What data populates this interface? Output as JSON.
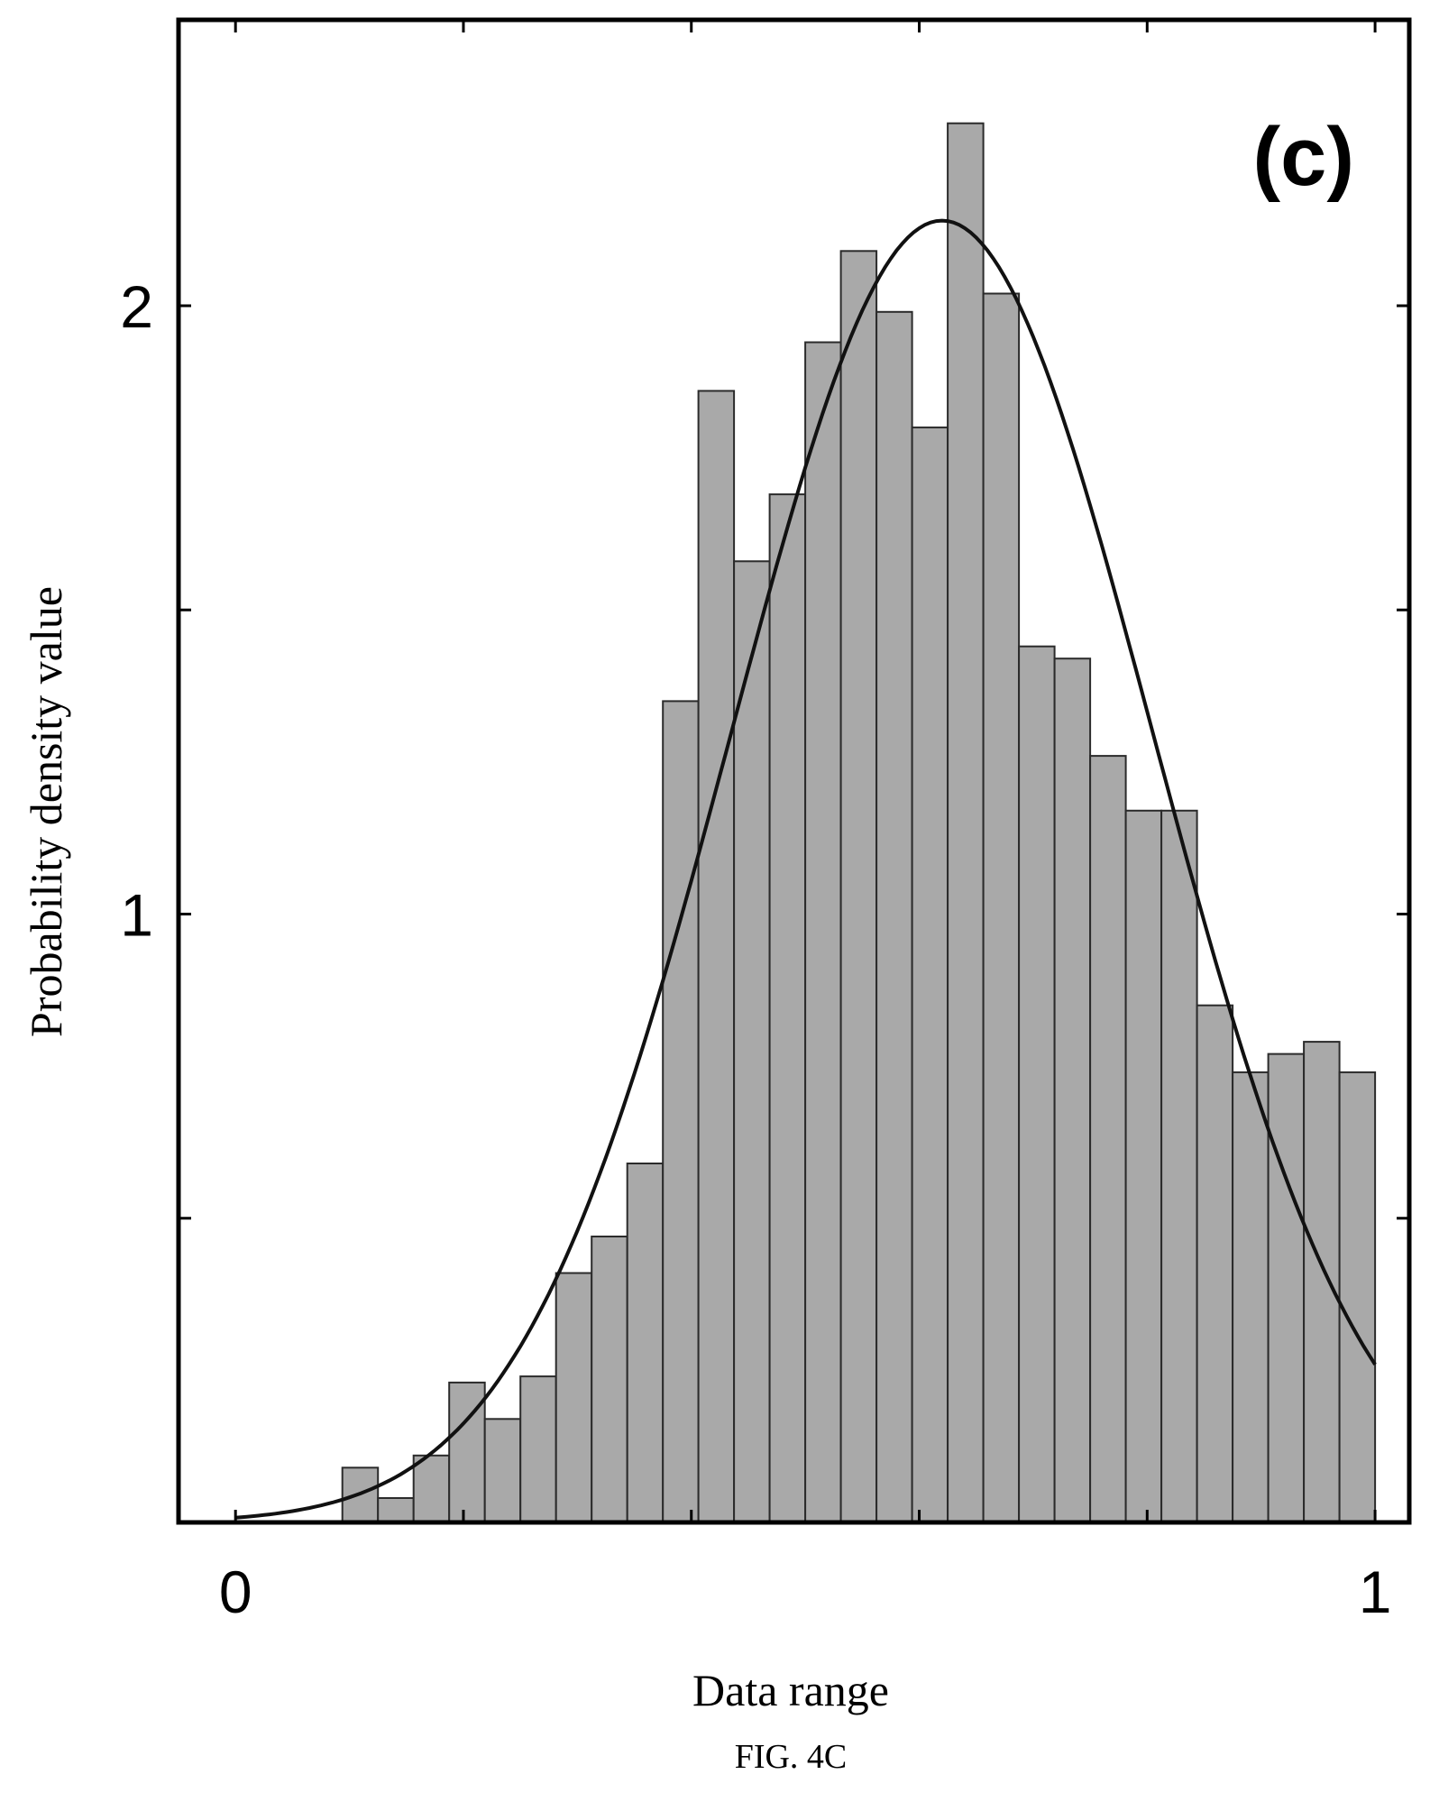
{
  "chart_data": {
    "type": "bar",
    "panel_label": "(c)",
    "caption": "FIG. 4C",
    "xlabel": "Data range",
    "ylabel": "Probability density value",
    "xlim": [
      -0.05,
      1.03
    ],
    "ylim": [
      0,
      2.47
    ],
    "x_ticks": [
      0,
      1
    ],
    "y_ticks": [
      1,
      2
    ],
    "x_minor_ticks": [
      0.2,
      0.4,
      0.6,
      0.8
    ],
    "y_minor_ticks": [
      0.5,
      1.5
    ],
    "grid": false,
    "legend": "none",
    "bin_width": 0.03125,
    "bin_left_edges": [
      0,
      0.03125,
      0.0625,
      0.09375,
      0.125,
      0.15625,
      0.1875,
      0.21875,
      0.25,
      0.28125,
      0.3125,
      0.34375,
      0.375,
      0.40625,
      0.4375,
      0.46875,
      0.5,
      0.53125,
      0.5625,
      0.59375,
      0.625,
      0.65625,
      0.6875,
      0.71875,
      0.75,
      0.78125,
      0.8125,
      0.84375,
      0.875,
      0.90625,
      0.9375,
      0.96875
    ],
    "values": [
      0,
      0,
      0,
      0.09,
      0.04,
      0.11,
      0.23,
      0.17,
      0.24,
      0.41,
      0.47,
      0.59,
      1.35,
      1.86,
      1.58,
      1.69,
      1.94,
      2.09,
      1.99,
      1.8,
      2.3,
      2.02,
      1.44,
      1.42,
      1.26,
      1.17,
      1.17,
      0.85,
      0.74,
      0.77,
      0.79,
      0.74
    ],
    "fit_curve": {
      "type": "normal",
      "mean": 0.62,
      "std": 0.185,
      "peak": 2.14
    },
    "colors": {
      "bar_fill": "#a9a9a9",
      "bar_edge": "#2b2b2b",
      "curve": "#111111",
      "axes": "#000000"
    }
  }
}
